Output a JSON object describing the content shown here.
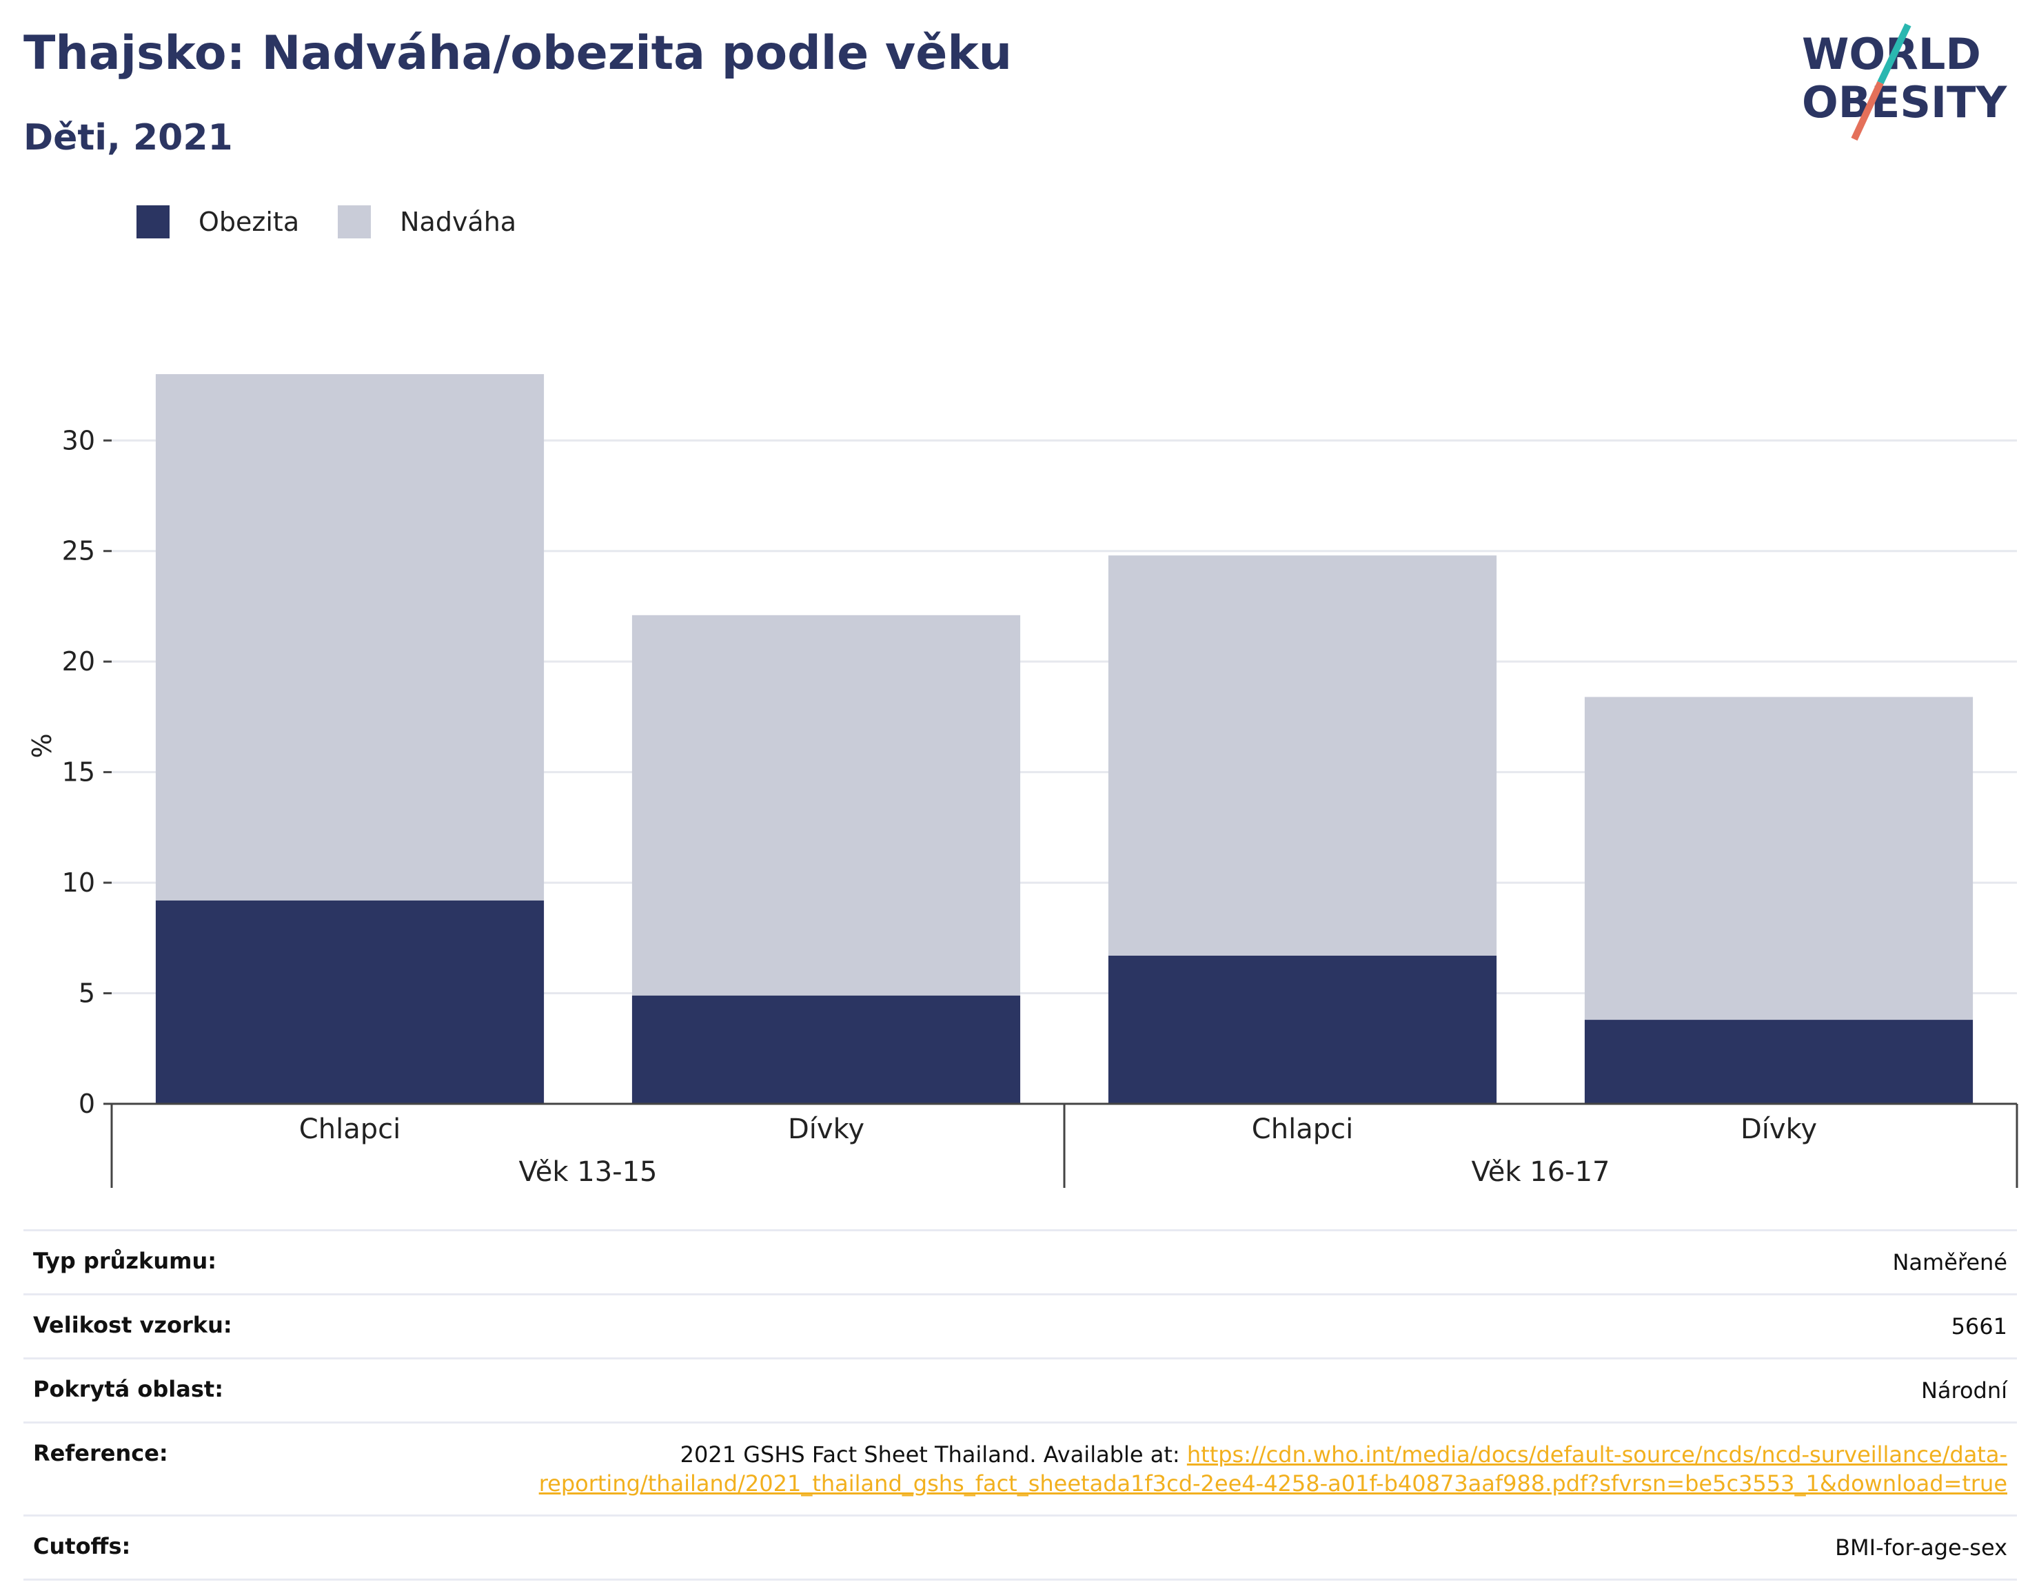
{
  "header": {
    "title": "Thajsko: Nadváha/obezita podle věku",
    "subtitle": "Děti, 2021"
  },
  "logo": {
    "line1": "WORLD",
    "line2": "OBESITY"
  },
  "colors": {
    "obezita": "#2b3562",
    "nadvaha": "#c9ccd8",
    "accent": "#2b3562",
    "link": "#f2b01e"
  },
  "chart_data": {
    "type": "bar",
    "stacked": true,
    "ylabel": "%",
    "ylim": [
      0,
      33
    ],
    "yticks": [
      0,
      5,
      10,
      15,
      20,
      25,
      30
    ],
    "grid": true,
    "legend_position": "top-left",
    "categories": [
      "Chlapci",
      "Dívky",
      "Chlapci",
      "Dívky"
    ],
    "groups": [
      {
        "label": "Věk 13-15",
        "categories": [
          0,
          1
        ]
      },
      {
        "label": "Věk 16-17",
        "categories": [
          2,
          3
        ]
      }
    ],
    "series": [
      {
        "name": "Obezita",
        "values": [
          9.2,
          4.9,
          6.7,
          3.8
        ]
      },
      {
        "name": "Nadváha",
        "values": [
          23.8,
          17.2,
          18.1,
          14.6
        ]
      }
    ]
  },
  "details": [
    {
      "label": "Typ průzkumu:",
      "value": "Naměřené"
    },
    {
      "label": "Velikost vzorku:",
      "value": "5661"
    },
    {
      "label": "Pokrytá oblast:",
      "value": "Národní"
    },
    {
      "label": "Reference:",
      "value": "2021 GSHS Fact Sheet Thailand. Available at: ",
      "link": "https://cdn.who.int/media/docs/default-source/ncds/ncd-surveillance/data-reporting/thailand/2021_thailand_gshs_fact_sheetada1f3cd-2ee4-4258-a01f-b40873aaf988.pdf?sfvrsn=be5c3553_1&download=true"
    },
    {
      "label": "Cutoffs:",
      "value": "BMI-for-age-sex"
    }
  ]
}
